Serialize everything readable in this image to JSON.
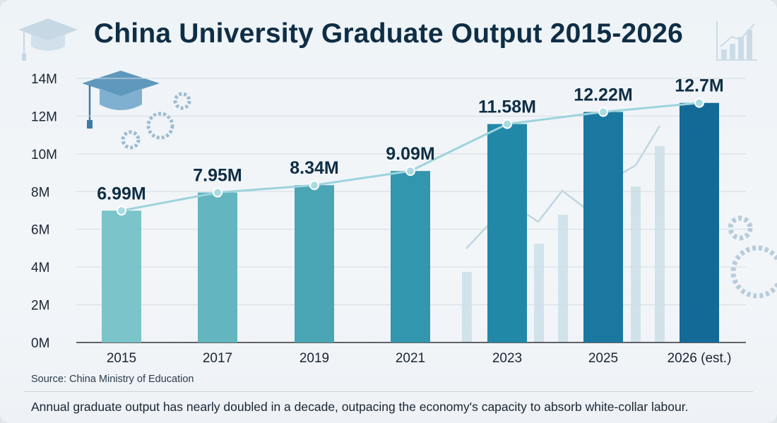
{
  "title": "China University Graduate Output 2015-2026",
  "source": "Source: China Ministry of Education",
  "footnote": "Annual graduate output has nearly doubled in a decade, outpacing the economy's capacity to absorb white-collar labour.",
  "chart_data": {
    "type": "bar",
    "title": "China University Graduate Output 2015-2026",
    "categories": [
      "2015",
      "2017",
      "2019",
      "2021",
      "2023",
      "2025",
      "2026 (est.)"
    ],
    "values": [
      6.99,
      7.95,
      8.34,
      9.09,
      11.58,
      12.22,
      12.7
    ],
    "value_labels": [
      "6.99M",
      "7.95M",
      "8.34M",
      "9.09M",
      "11.58M",
      "12.22M",
      "12.7M"
    ],
    "overlay_line": true,
    "ylim": [
      0,
      14
    ],
    "yticks": [
      0,
      2,
      4,
      6,
      8,
      10,
      12,
      14
    ],
    "ytick_labels": [
      "0M",
      "2M",
      "4M",
      "6M",
      "8M",
      "10M",
      "12M",
      "14M"
    ],
    "xlabel": "",
    "ylabel": "",
    "grid": true,
    "bar_colors": [
      "#7ac4ca",
      "#63b5bf",
      "#4aa5b5",
      "#3296ae",
      "#2188a8",
      "#1a78a0",
      "#146a97"
    ],
    "line_color": "#9dd3dd",
    "text_color": "#0f2e45"
  },
  "icons": [
    "graduation-cap-icon",
    "gear-icon",
    "growth-chart-icon"
  ]
}
